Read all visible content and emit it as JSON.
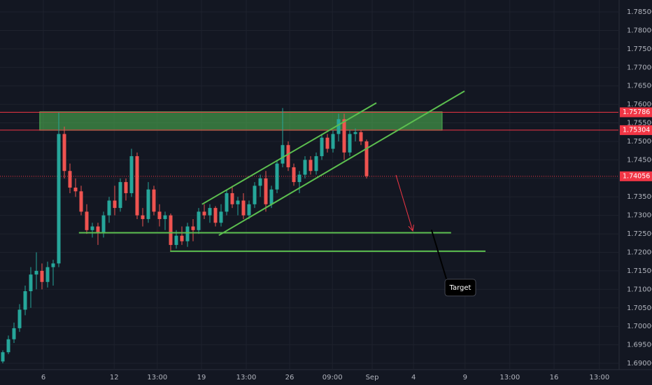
{
  "chart_data": {
    "type": "candlestick",
    "xlim": [
      -0.5,
      110
    ],
    "xticks": [
      {
        "value": 7.25,
        "label": "6"
      },
      {
        "value": 19.9,
        "label": "12"
      },
      {
        "value": 27.6,
        "label": "13:00"
      },
      {
        "value": 35.5,
        "label": "19"
      },
      {
        "value": 43.5,
        "label": "13:00"
      },
      {
        "value": 51.25,
        "label": "26"
      },
      {
        "value": 58.9,
        "label": "09:00"
      },
      {
        "value": 66,
        "label": "Sep"
      },
      {
        "value": 73.4,
        "label": "4"
      },
      {
        "value": 82.6,
        "label": "9"
      },
      {
        "value": 90.6,
        "label": "13:00"
      },
      {
        "value": 98.5,
        "label": "16"
      },
      {
        "value": 106.6,
        "label": "13:00"
      }
    ],
    "ylim": [
      1.68906,
      1.78822
    ],
    "yticks": [
      {
        "value": 1.69,
        "label": "1.69000"
      },
      {
        "value": 1.695,
        "label": "1.69500"
      },
      {
        "value": 1.7,
        "label": "1.70000"
      },
      {
        "value": 1.705,
        "label": "1.70500"
      },
      {
        "value": 1.71,
        "label": "1.71000"
      },
      {
        "value": 1.715,
        "label": "1.71500"
      },
      {
        "value": 1.72,
        "label": "1.72000"
      },
      {
        "value": 1.725,
        "label": "1.72500"
      },
      {
        "value": 1.73,
        "label": "1.73000"
      },
      {
        "value": 1.735,
        "label": "1.73500"
      },
      {
        "value": 1.74,
        "label": "1.74000"
      },
      {
        "value": 1.745,
        "label": "1.74500"
      },
      {
        "value": 1.75,
        "label": "1.75000"
      },
      {
        "value": 1.755,
        "label": "1.75500"
      },
      {
        "value": 1.76,
        "label": "1.76000"
      },
      {
        "value": 1.765,
        "label": "1.76500"
      },
      {
        "value": 1.77,
        "label": "1.77000"
      },
      {
        "value": 1.775,
        "label": "1.77500"
      },
      {
        "value": 1.78,
        "label": "1.78000"
      },
      {
        "value": 1.785,
        "label": "1.78500"
      }
    ],
    "grid": true,
    "up_color": "#26a69a",
    "down_color": "#ef5350",
    "ohlc": [
      [
        1.6905,
        1.6935,
        1.69,
        1.693
      ],
      [
        1.693,
        1.6975,
        1.6925,
        1.6965
      ],
      [
        1.6965,
        1.701,
        1.6955,
        1.6995
      ],
      [
        1.6995,
        1.706,
        1.6985,
        1.7045
      ],
      [
        1.7045,
        1.711,
        1.703,
        1.7095
      ],
      [
        1.7095,
        1.716,
        1.705,
        1.714
      ],
      [
        1.714,
        1.72,
        1.71,
        1.715
      ],
      [
        1.715,
        1.717,
        1.71,
        1.712
      ],
      [
        1.712,
        1.7175,
        1.7105,
        1.716
      ],
      [
        1.716,
        1.718,
        1.711,
        1.717
      ],
      [
        1.717,
        1.7578,
        1.716,
        1.752
      ],
      [
        1.752,
        1.754,
        1.74,
        1.742
      ],
      [
        1.742,
        1.744,
        1.736,
        1.7375
      ],
      [
        1.7375,
        1.74,
        1.735,
        1.7365
      ],
      [
        1.7365,
        1.738,
        1.73,
        1.731
      ],
      [
        1.731,
        1.733,
        1.725,
        1.726
      ],
      [
        1.726,
        1.728,
        1.724,
        1.727
      ],
      [
        1.727,
        1.728,
        1.722,
        1.7255
      ],
      [
        1.7255,
        1.731,
        1.724,
        1.73
      ],
      [
        1.73,
        1.735,
        1.728,
        1.734
      ],
      [
        1.734,
        1.738,
        1.73,
        1.732
      ],
      [
        1.732,
        1.74,
        1.731,
        1.739
      ],
      [
        1.739,
        1.74,
        1.734,
        1.736
      ],
      [
        1.736,
        1.748,
        1.735,
        1.746
      ],
      [
        1.746,
        1.747,
        1.729,
        1.73
      ],
      [
        1.73,
        1.732,
        1.727,
        1.729
      ],
      [
        1.729,
        1.739,
        1.728,
        1.737
      ],
      [
        1.737,
        1.738,
        1.73,
        1.731
      ],
      [
        1.731,
        1.733,
        1.727,
        1.729
      ],
      [
        1.729,
        1.731,
        1.726,
        1.73
      ],
      [
        1.73,
        1.7305,
        1.7205,
        1.722
      ],
      [
        1.722,
        1.726,
        1.721,
        1.7245
      ],
      [
        1.7245,
        1.727,
        1.722,
        1.723
      ],
      [
        1.723,
        1.728,
        1.7215,
        1.727
      ],
      [
        1.727,
        1.729,
        1.723,
        1.726
      ],
      [
        1.726,
        1.732,
        1.725,
        1.731
      ],
      [
        1.731,
        1.733,
        1.729,
        1.73
      ],
      [
        1.73,
        1.733,
        1.728,
        1.732
      ],
      [
        1.732,
        1.7325,
        1.727,
        1.728
      ],
      [
        1.728,
        1.733,
        1.727,
        1.731
      ],
      [
        1.731,
        1.737,
        1.73,
        1.736
      ],
      [
        1.736,
        1.738,
        1.732,
        1.733
      ],
      [
        1.733,
        1.735,
        1.73,
        1.734
      ],
      [
        1.734,
        1.736,
        1.729,
        1.73
      ],
      [
        1.73,
        1.734,
        1.729,
        1.733
      ],
      [
        1.733,
        1.739,
        1.732,
        1.738
      ],
      [
        1.738,
        1.741,
        1.735,
        1.74
      ],
      [
        1.74,
        1.742,
        1.731,
        1.733
      ],
      [
        1.733,
        1.738,
        1.732,
        1.737
      ],
      [
        1.737,
        1.745,
        1.736,
        1.744
      ],
      [
        1.744,
        1.759,
        1.743,
        1.749
      ],
      [
        1.749,
        1.75,
        1.742,
        1.743
      ],
      [
        1.743,
        1.744,
        1.738,
        1.739
      ],
      [
        1.739,
        1.742,
        1.736,
        1.741
      ],
      [
        1.741,
        1.746,
        1.74,
        1.745
      ],
      [
        1.745,
        1.746,
        1.741,
        1.742
      ],
      [
        1.742,
        1.747,
        1.741,
        1.746
      ],
      [
        1.746,
        1.752,
        1.745,
        1.751
      ],
      [
        1.751,
        1.752,
        1.747,
        1.748
      ],
      [
        1.748,
        1.753,
        1.747,
        1.752
      ],
      [
        1.752,
        1.7575,
        1.75,
        1.756
      ],
      [
        1.756,
        1.7575,
        1.745,
        1.747
      ],
      [
        1.747,
        1.753,
        1.746,
        1.752
      ],
      [
        1.752,
        1.7535,
        1.75,
        1.7525
      ],
      [
        1.7525,
        1.753,
        1.749,
        1.75
      ],
      [
        1.75,
        1.7505,
        1.74,
        1.7406
      ]
    ],
    "zone": {
      "x": [
        6.6,
        78.5
      ],
      "y": [
        1.753,
        1.758
      ],
      "color": "#4caf50"
    },
    "price_lines": [
      {
        "value": 1.75786,
        "label": "1.75786",
        "color": "#f23645",
        "dashed": false
      },
      {
        "value": 1.75304,
        "label": "1.75304",
        "color": "#f23645",
        "dashed": false
      },
      {
        "value": 1.74056,
        "label": "1.74056",
        "color": "#f23645",
        "dashed": true
      }
    ],
    "trend_lines": [
      {
        "x": [
          35.6,
          66.75
        ],
        "y": [
          1.733,
          1.7604
        ],
        "color": "#5cbf4f"
      },
      {
        "x": [
          38.6,
          82.5
        ],
        "y": [
          1.7246,
          1.7636
        ],
        "color": "#5cbf4f"
      },
      {
        "x": [
          13.6,
          80.1
        ],
        "y": [
          1.7253,
          1.7253
        ],
        "color": "#5cbf4f"
      },
      {
        "x": [
          29.9,
          86.25
        ],
        "y": [
          1.7203,
          1.7203
        ],
        "color": "#5cbf4f"
      }
    ],
    "arrow": {
      "x": [
        70.25,
        73.25
      ],
      "y": [
        1.7409,
        1.7258
      ],
      "color": "#f23645"
    },
    "callout": {
      "text": "Target",
      "x": [
        76.6,
        79.5
      ],
      "y": [
        1.7261,
        1.7116
      ]
    }
  }
}
